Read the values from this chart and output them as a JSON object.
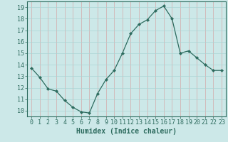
{
  "x": [
    0,
    1,
    2,
    3,
    4,
    5,
    6,
    7,
    8,
    9,
    10,
    11,
    12,
    13,
    14,
    15,
    16,
    17,
    18,
    19,
    20,
    21,
    22,
    23
  ],
  "y": [
    13.7,
    12.9,
    11.9,
    11.7,
    10.9,
    10.3,
    9.9,
    9.8,
    11.5,
    12.7,
    13.5,
    15.0,
    16.7,
    17.5,
    17.9,
    18.7,
    19.1,
    18.0,
    15.0,
    15.2,
    14.6,
    14.0,
    13.5,
    13.5
  ],
  "line_color": "#2d6b5e",
  "marker": "D",
  "marker_size": 2.2,
  "bg_color": "#cce8e8",
  "minor_grid_color": "#aad4d4",
  "major_grid_color": "#d4aaaa",
  "ylim": [
    9.5,
    19.5
  ],
  "yticks": [
    10,
    11,
    12,
    13,
    14,
    15,
    16,
    17,
    18,
    19
  ],
  "xticks": [
    0,
    1,
    2,
    3,
    4,
    5,
    6,
    7,
    8,
    9,
    10,
    11,
    12,
    13,
    14,
    15,
    16,
    17,
    18,
    19,
    20,
    21,
    22,
    23
  ],
  "xlabel": "Humidex (Indice chaleur)",
  "xlabel_fontsize": 7,
  "tick_fontsize": 6
}
